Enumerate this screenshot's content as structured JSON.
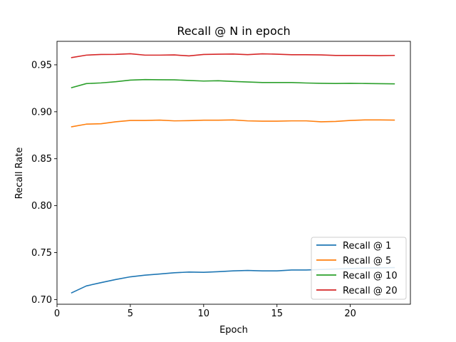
{
  "chart_data": {
    "type": "line",
    "title": "Recall @ N in epoch",
    "xlabel": "Epoch",
    "ylabel": "Recall Rate",
    "xlim": [
      0,
      24.1
    ],
    "ylim": [
      0.695,
      0.975
    ],
    "xticks": [
      0,
      5,
      10,
      15,
      20
    ],
    "yticks": [
      0.7,
      0.75,
      0.8,
      0.85,
      0.9,
      0.95
    ],
    "ytick_labels": [
      "0.70",
      "0.75",
      "0.80",
      "0.85",
      "0.90",
      "0.95"
    ],
    "xtick_labels": [
      "0",
      "5",
      "10",
      "15",
      "20"
    ],
    "grid": false,
    "legend_position": "lower-right",
    "x": [
      1,
      2,
      3,
      4,
      5,
      6,
      7,
      8,
      9,
      10,
      11,
      12,
      13,
      14,
      15,
      16,
      17,
      18,
      19,
      20,
      21,
      22,
      23
    ],
    "series": [
      {
        "name": "Recall @ 1",
        "color": "#1f77b4",
        "values": [
          0.7072,
          0.7145,
          0.718,
          0.7213,
          0.7242,
          0.726,
          0.7272,
          0.7285,
          0.7293,
          0.729,
          0.7297,
          0.7305,
          0.731,
          0.7305,
          0.7305,
          0.7315,
          0.7315,
          0.732,
          0.7325,
          0.733,
          0.7335,
          0.7338,
          0.734
        ]
      },
      {
        "name": "Recall @ 5",
        "color": "#ff7f0e",
        "values": [
          0.884,
          0.8868,
          0.8872,
          0.8893,
          0.8907,
          0.8907,
          0.8911,
          0.8903,
          0.8905,
          0.891,
          0.891,
          0.8913,
          0.8903,
          0.89,
          0.89,
          0.8903,
          0.8903,
          0.8893,
          0.8897,
          0.8907,
          0.8913,
          0.8913,
          0.8911
        ]
      },
      {
        "name": "Recall @ 10",
        "color": "#2ca02c",
        "values": [
          0.9257,
          0.93,
          0.9307,
          0.932,
          0.9337,
          0.9343,
          0.9341,
          0.934,
          0.9333,
          0.9327,
          0.933,
          0.9323,
          0.9317,
          0.9311,
          0.9311,
          0.9311,
          0.9306,
          0.9303,
          0.9301,
          0.9303,
          0.9301,
          0.9299,
          0.9297
        ]
      },
      {
        "name": "Recall @ 20",
        "color": "#d62728",
        "values": [
          0.9577,
          0.9603,
          0.961,
          0.9611,
          0.9618,
          0.9603,
          0.9603,
          0.9605,
          0.9595,
          0.961,
          0.9613,
          0.9615,
          0.9608,
          0.9617,
          0.9613,
          0.9607,
          0.9607,
          0.9605,
          0.96,
          0.96,
          0.96,
          0.9598,
          0.96
        ]
      }
    ]
  }
}
